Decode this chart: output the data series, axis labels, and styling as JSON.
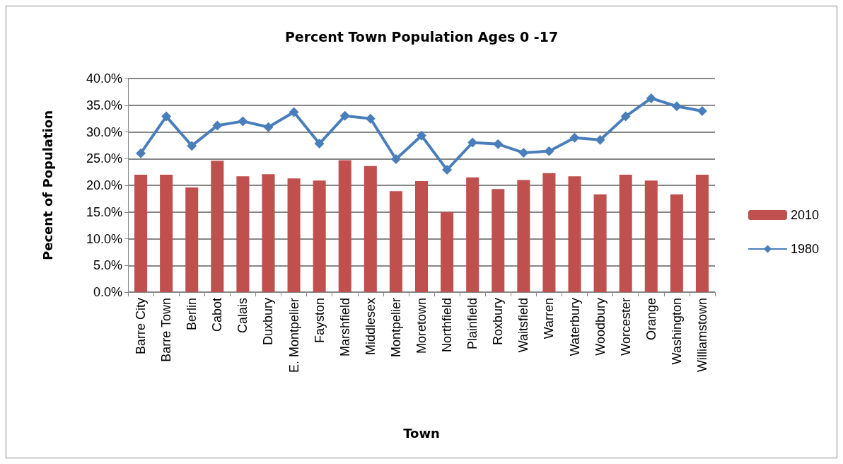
{
  "chart_data": {
    "type": "bar",
    "title": "Percent Town Population Ages 0 -17",
    "xlabel": "Town",
    "ylabel": "Pecent of Population",
    "categories": [
      "Barre City",
      "Barre Town",
      "Berlin",
      "Cabot",
      "Calais",
      "Duxbury",
      "E. Montpelier",
      "Fayston",
      "Marshfield",
      "Middlesex",
      "Montpelier",
      "Moretown",
      "Northfield",
      "Plainfield",
      "Roxbury",
      "Waitsfield",
      "Warren",
      "Waterbury",
      "Woodbury",
      "Worcester",
      "Orange",
      "Washington",
      "Williamstown"
    ],
    "series": [
      {
        "name": "2010",
        "color": "#c0504d",
        "values": [
          22.0,
          22.0,
          19.6,
          24.6,
          21.7,
          22.1,
          21.3,
          20.9,
          24.7,
          23.6,
          18.9,
          20.8,
          15.0,
          21.5,
          19.3,
          21.0,
          22.3,
          21.7,
          18.3,
          22.0,
          20.9,
          18.3,
          22.0
        ]
      },
      {
        "name": "1980",
        "type": "line",
        "color": "#4a7ebb",
        "marker": "diamond",
        "values": [
          26.0,
          32.9,
          27.4,
          31.2,
          32.0,
          30.9,
          33.7,
          27.8,
          33.0,
          32.5,
          24.9,
          29.3,
          22.9,
          28.0,
          27.7,
          26.1,
          26.4,
          28.9,
          28.5,
          32.9,
          36.3,
          34.8,
          33.9
        ]
      }
    ],
    "ylim": [
      0,
      40
    ],
    "yticks": [
      {
        "value": 0,
        "label": "0.0%"
      },
      {
        "value": 5,
        "label": "5.0%"
      },
      {
        "value": 10,
        "label": "10.0%"
      },
      {
        "value": 15,
        "label": "15.0%"
      },
      {
        "value": 20,
        "label": "20.0%"
      },
      {
        "value": 25,
        "label": "25.0%"
      },
      {
        "value": 30,
        "label": "30.0%"
      },
      {
        "value": 35,
        "label": "35.0%"
      },
      {
        "value": 40,
        "label": "40.0%"
      }
    ],
    "grid": "y",
    "legend": "right"
  }
}
